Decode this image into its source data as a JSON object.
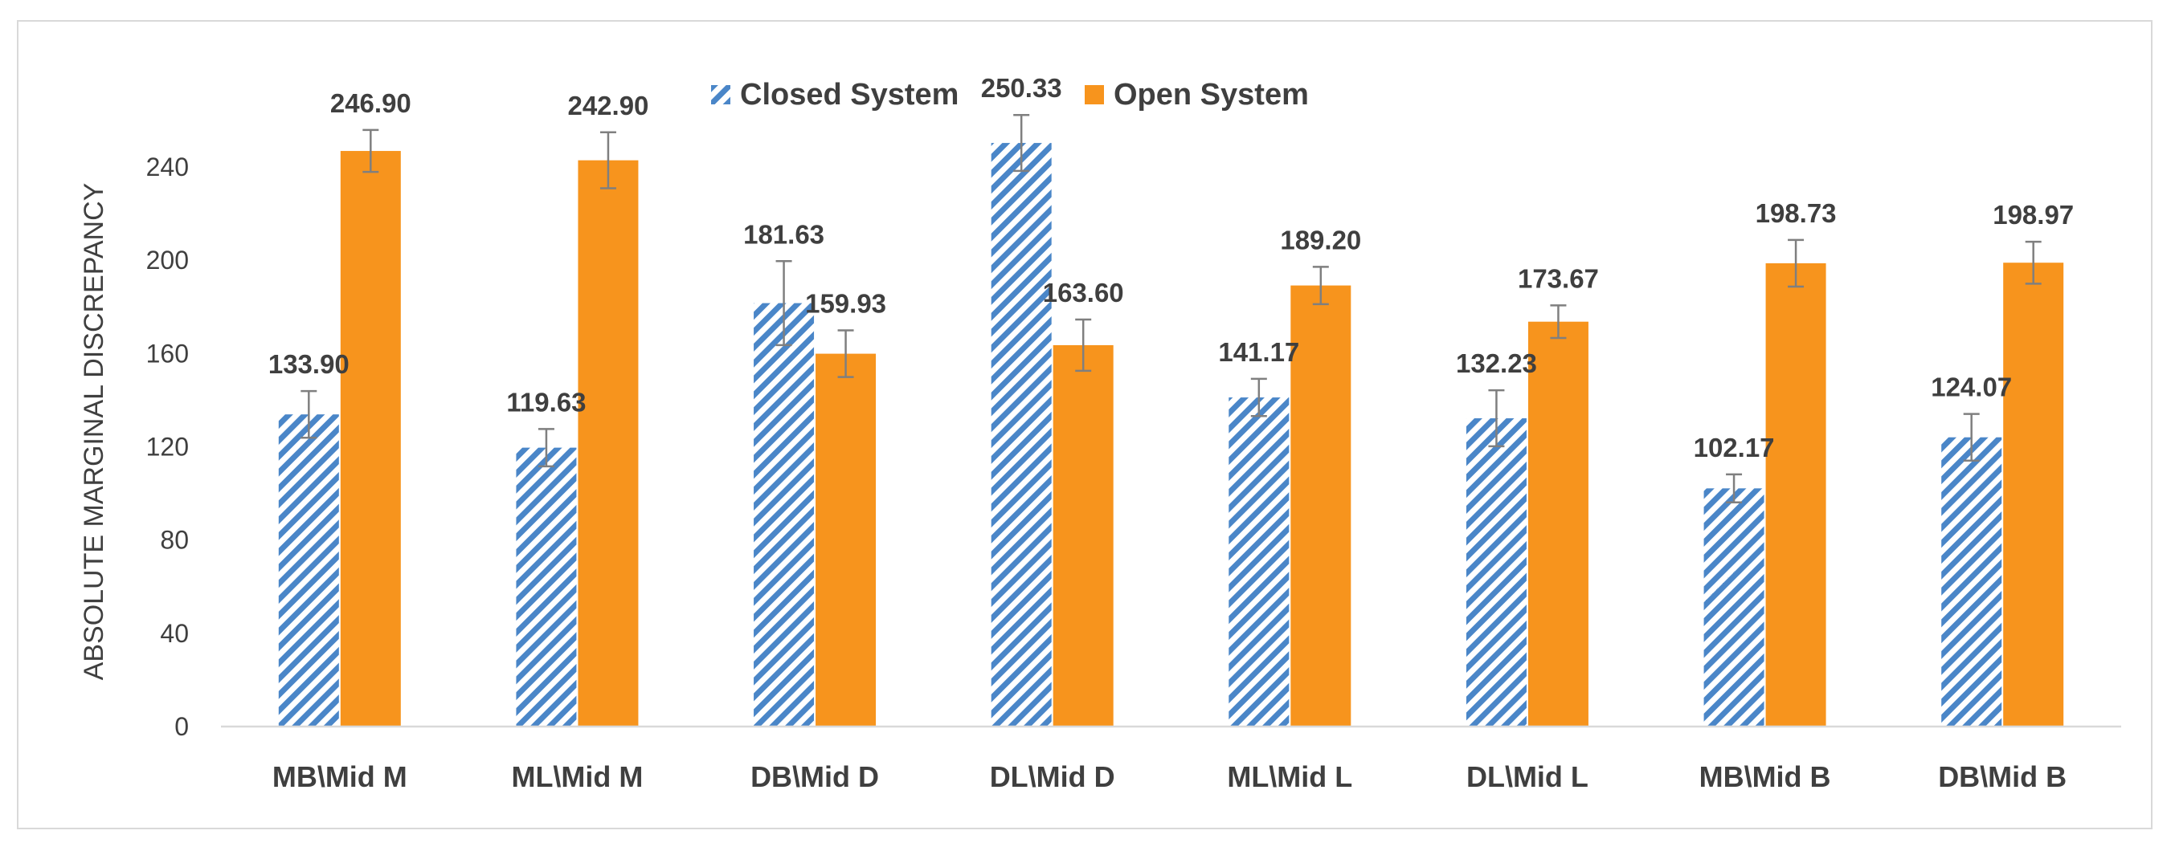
{
  "chart_data": {
    "type": "bar",
    "title": "",
    "xlabel": "",
    "ylabel": "ABSOLUTE MARGINAL DISCREPANCY",
    "ylim": [
      0,
      260
    ],
    "yticks": [
      0,
      40,
      80,
      120,
      160,
      200,
      240
    ],
    "grid": false,
    "legend_position": "top-center",
    "categories": [
      "MB\\Mid M",
      "ML\\Mid M",
      "DB\\Mid D",
      "DL\\Mid D",
      "ML\\Mid L",
      "DL\\Mid L",
      "MB\\Mid B",
      "DB\\Mid B"
    ],
    "series": [
      {
        "name": "Closed System",
        "pattern": "diagonal-stripes",
        "color": "#4a86c8",
        "values": [
          133.9,
          119.63,
          181.63,
          250.33,
          141.17,
          132.23,
          102.17,
          124.07
        ],
        "labels": [
          "133.90",
          "119.63",
          "181.63",
          "250.33",
          "141.17",
          "132.23",
          "102.17",
          "124.07"
        ],
        "errors": [
          10,
          8,
          18,
          12,
          8,
          12,
          6,
          10
        ]
      },
      {
        "name": "Open System",
        "pattern": "solid",
        "color": "#f7941d",
        "values": [
          246.9,
          242.9,
          159.93,
          163.6,
          189.2,
          173.67,
          198.73,
          198.97
        ],
        "labels": [
          "246.90",
          "242.90",
          "159.93",
          "163.60",
          "189.20",
          "173.67",
          "198.73",
          "198.97"
        ],
        "errors": [
          9,
          12,
          10,
          11,
          8,
          7,
          10,
          9
        ]
      }
    ],
    "error_bar_color": "#7f7f7f",
    "axis_color": "#d9d9d9",
    "text_color": "#3f3f3f",
    "frame_color": "#d9d9d9"
  }
}
